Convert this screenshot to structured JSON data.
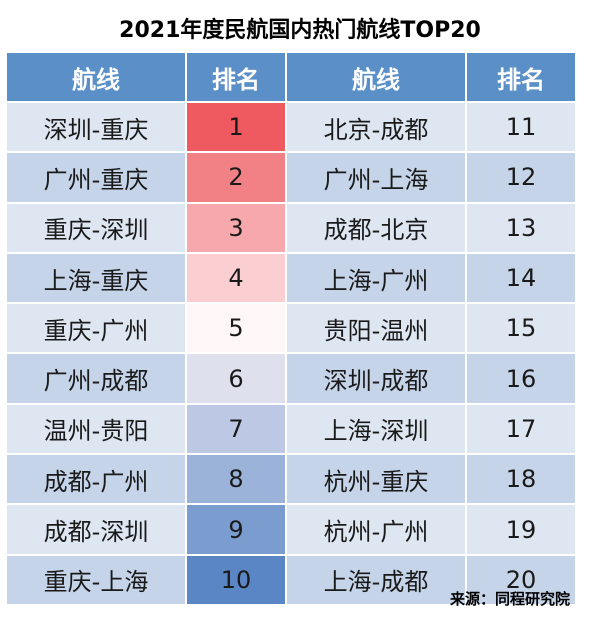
{
  "title": "2021年度民航国内热门航线TOP20",
  "headers": {
    "route": "航线",
    "rank": "排名"
  },
  "source": "来源：同程研究院",
  "colors": {
    "header_bg": "#5b8fc7",
    "row_light": "#dde6f1",
    "row_mid": "#c5d4e8",
    "rank_scale_red_high": "#ee5a5f",
    "rank_scale_blue_low": "#5a86c5"
  },
  "chart_data": {
    "type": "table",
    "title": "2021年度民航国内热门航线TOP20",
    "columns": [
      "航线",
      "排名",
      "航线",
      "排名"
    ],
    "rows": [
      [
        "深圳-重庆",
        1,
        "北京-成都",
        11
      ],
      [
        "广州-重庆",
        2,
        "广州-上海",
        12
      ],
      [
        "重庆-深圳",
        3,
        "成都-北京",
        13
      ],
      [
        "上海-重庆",
        4,
        "上海-广州",
        14
      ],
      [
        "重庆-广州",
        5,
        "贵阳-温州",
        15
      ],
      [
        "广州-成都",
        6,
        "深圳-成都",
        16
      ],
      [
        "温州-贵阳",
        7,
        "上海-深圳",
        17
      ],
      [
        "成都-广州",
        8,
        "杭州-重庆",
        18
      ],
      [
        "成都-深圳",
        9,
        "杭州-广州",
        19
      ],
      [
        "重庆-上海",
        10,
        "上海-成都",
        20
      ]
    ]
  }
}
